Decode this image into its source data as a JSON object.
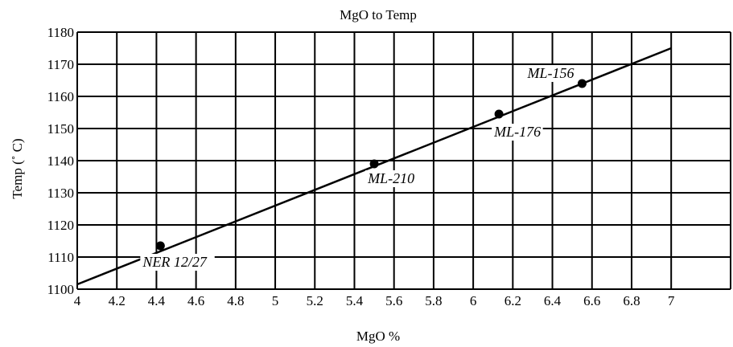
{
  "chart_data": {
    "type": "scatter",
    "title": "MgO to Temp",
    "xlabel": "MgO %",
    "ylabel": "Temp (˚ C)",
    "xlim": [
      4,
      7.3
    ],
    "ylim": [
      1100,
      1180
    ],
    "x_ticks": [
      4,
      4.2,
      4.4,
      4.6,
      4.8,
      5,
      5.2,
      5.4,
      5.6,
      5.8,
      6,
      6.2,
      6.4,
      6.6,
      6.8,
      7
    ],
    "x_tick_labels": [
      "4",
      "4.2",
      "4.4",
      "4.6",
      "4.8",
      "5",
      "5.2",
      "5.4",
      "5.6",
      "5.8",
      "6",
      "6.2",
      "6.4",
      "6.6",
      "6.8",
      "7"
    ],
    "y_ticks": [
      1100,
      1110,
      1120,
      1130,
      1140,
      1150,
      1160,
      1170,
      1180
    ],
    "y_tick_labels": [
      "1100",
      "1110",
      "1120",
      "1130",
      "1140",
      "1150",
      "1160",
      "1170",
      "1180"
    ],
    "grid": true,
    "points": [
      {
        "label": "NER 12/27",
        "x": 4.42,
        "y": 1113.5
      },
      {
        "label": "ML-210",
        "x": 5.5,
        "y": 1139
      },
      {
        "label": "ML-176",
        "x": 6.13,
        "y": 1154.5
      },
      {
        "label": "ML-156",
        "x": 6.55,
        "y": 1164
      }
    ],
    "fit_line": {
      "x": [
        4,
        7
      ],
      "y": [
        1101.5,
        1175
      ]
    },
    "colors": {
      "line": "#000000",
      "grid": "#000000",
      "background": "#ffffff"
    }
  }
}
